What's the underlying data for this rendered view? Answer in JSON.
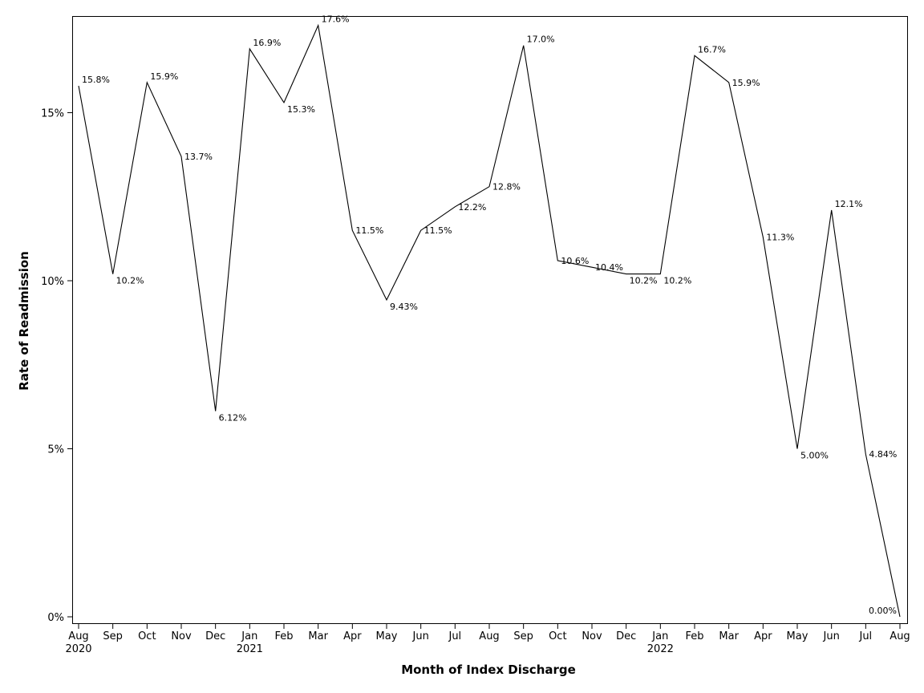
{
  "chart_data": {
    "type": "line",
    "title": "",
    "xlabel": "Month of Index Discharge",
    "ylabel": "Rate of Readmission",
    "ylim": [
      0,
      17.6
    ],
    "grid": false,
    "legend": "none",
    "line_color": "#000000",
    "y_ticks": [
      {
        "value": 0,
        "label": "0%"
      },
      {
        "value": 5,
        "label": "5%"
      },
      {
        "value": 10,
        "label": "10%"
      },
      {
        "value": 15,
        "label": "15%"
      }
    ],
    "x": [
      "2020-08",
      "2020-09",
      "2020-10",
      "2020-11",
      "2020-12",
      "2021-01",
      "2021-02",
      "2021-03",
      "2021-04",
      "2021-05",
      "2021-06",
      "2021-07",
      "2021-08",
      "2021-09",
      "2021-10",
      "2021-11",
      "2021-12",
      "2022-01",
      "2022-02",
      "2022-03",
      "2022-04",
      "2022-05",
      "2022-06",
      "2022-07",
      "2022-08"
    ],
    "x_tick_labels": [
      "Aug",
      "Sep",
      "Oct",
      "Nov",
      "Dec",
      "Jan",
      "Feb",
      "Mar",
      "Apr",
      "May",
      "Jun",
      "Jul",
      "Aug",
      "Sep",
      "Oct",
      "Nov",
      "Dec",
      "Jan",
      "Feb",
      "Mar",
      "Apr",
      "May",
      "Jun",
      "Jul",
      "Aug"
    ],
    "x_year_labels": [
      {
        "x": "2020-08",
        "label": "2020"
      },
      {
        "x": "2021-01",
        "label": "2021"
      },
      {
        "x": "2022-01",
        "label": "2022"
      }
    ],
    "values": [
      15.8,
      10.2,
      15.9,
      13.7,
      6.12,
      16.9,
      15.3,
      17.6,
      11.5,
      9.43,
      11.5,
      12.2,
      12.8,
      17.0,
      10.6,
      10.4,
      10.2,
      10.2,
      16.7,
      15.9,
      11.3,
      5.0,
      12.1,
      4.84,
      0.0
    ],
    "data_labels": [
      "15.8%",
      "10.2%",
      "15.9%",
      "13.7%",
      "6.12%",
      "16.9%",
      "15.3%",
      "17.6%",
      "11.5%",
      "9.43%",
      "11.5%",
      "12.2%",
      "12.8%",
      "17.0%",
      "10.6%",
      "10.4%",
      "10.2%",
      "10.2%",
      "16.7%",
      "15.9%",
      "11.3%",
      "5.00%",
      "12.1%",
      "4.84%",
      "0.00%"
    ]
  }
}
